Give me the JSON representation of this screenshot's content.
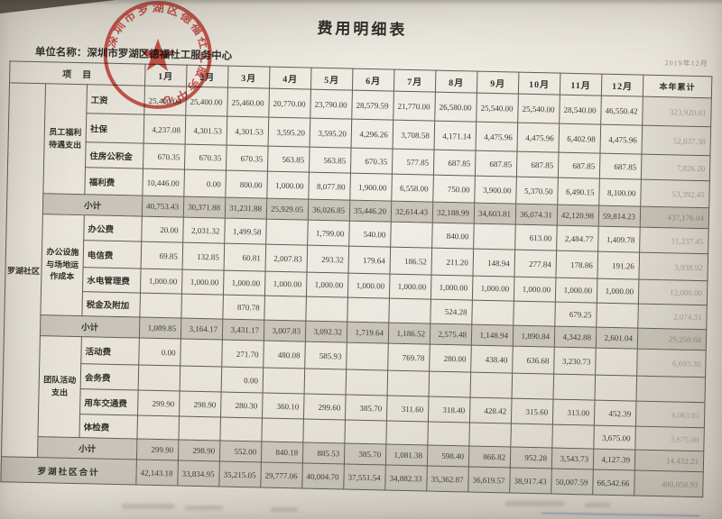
{
  "page": {
    "title": "费用明细表",
    "unit_label": "单位名称：",
    "unit_name": "深圳市罗湖区德福社工服务中心",
    "date_note": "2019年12月",
    "stamp_text": "深圳市罗湖区德福社工服务中心"
  },
  "table": {
    "region_label": "罗湖社区",
    "subtotal_label": "小计",
    "header": {
      "item": "项　目",
      "total": "本年累计",
      "months": [
        "1月",
        "2月",
        "3月",
        "4月",
        "5月",
        "6月",
        "7月",
        "8月",
        "9月",
        "10月",
        "11月",
        "12月"
      ]
    },
    "groups": [
      {
        "category": "员工福利待遇支出",
        "rows": [
          {
            "label": "工资",
            "values": [
              "25,400.00",
              "25,400.00",
              "25,460.00",
              "20,770.00",
              "23,790.00",
              "28,579.59",
              "21,770.00",
              "26,580.00",
              "25,540.00",
              "25,540.00",
              "28,540.00",
              "46,550.42"
            ],
            "total": "323,920.01"
          },
          {
            "label": "社保",
            "values": [
              "4,237.08",
              "4,301.53",
              "4,301.53",
              "3,595.20",
              "3,595.20",
              "4,296.26",
              "3,708.58",
              "4,171.14",
              "4,475.96",
              "4,475.96",
              "6,402.98",
              "4,475.96"
            ],
            "total": "52,037.38"
          },
          {
            "label": "住房公积金",
            "values": [
              "670.35",
              "670.35",
              "670.35",
              "563.85",
              "563.85",
              "670.35",
              "577.85",
              "687.85",
              "687.85",
              "687.85",
              "687.85",
              "687.85"
            ],
            "total": "7,826.20"
          },
          {
            "label": "福利费",
            "values": [
              "10,446.00",
              "0.00",
              "800.00",
              "1,000.00",
              "8,077.80",
              "1,900.00",
              "6,558.00",
              "750.00",
              "3,900.00",
              "5,370.50",
              "6,490.15",
              "8,100.00"
            ],
            "total": "53,392.45"
          }
        ],
        "subtotal": {
          "values": [
            "40,753.43",
            "30,371.88",
            "31,231.88",
            "25,929.05",
            "36,026.85",
            "35,446.20",
            "32,614.43",
            "32,188.99",
            "34,603.81",
            "36,074.31",
            "42,120.98",
            "59,814.23"
          ],
          "total": "437,176.04"
        }
      },
      {
        "category": "办公设施与场地运作成本",
        "rows": [
          {
            "label": "办公费",
            "values": [
              "20.00",
              "2,031.32",
              "1,499.58",
              "",
              "1,799.00",
              "540.00",
              "",
              "840.00",
              "",
              "613.00",
              "2,484.77",
              "1,409.78"
            ],
            "total": "11,237.45"
          },
          {
            "label": "电信费",
            "values": [
              "69.85",
              "132.85",
              "60.81",
              "2,007.83",
              "293.32",
              "179.64",
              "186.52",
              "211.20",
              "148.94",
              "277.84",
              "178.86",
              "191.26"
            ],
            "total": "3,938.92"
          },
          {
            "label": "水电管理费",
            "values": [
              "1,000.00",
              "1,000.00",
              "1,000.00",
              "1,000.00",
              "1,000.00",
              "1,000.00",
              "1,000.00",
              "1,000.00",
              "1,000.00",
              "1,000.00",
              "1,000.00",
              "1,000.00"
            ],
            "total": "12,000.00"
          },
          {
            "label": "税金及附加",
            "values": [
              "",
              "",
              "870.78",
              "",
              "",
              "",
              "",
              "524.28",
              "",
              "",
              "679.25",
              ""
            ],
            "total": "2,074.31"
          }
        ],
        "subtotal": {
          "values": [
            "1,089.85",
            "3,164.17",
            "3,431.17",
            "3,007.83",
            "3,092.32",
            "1,719.64",
            "1,186.52",
            "2,575.48",
            "1,148.94",
            "1,890.84",
            "4,342.88",
            "2,601.04"
          ],
          "total": "29,250.68"
        }
      },
      {
        "category": "团队活动支出",
        "rows": [
          {
            "label": "活动费",
            "values": [
              "0.00",
              "",
              "271.70",
              "480.08",
              "585.93",
              "",
              "769.78",
              "280.00",
              "438.40",
              "636.68",
              "3,230.73",
              ""
            ],
            "total": "6,693.30"
          },
          {
            "label": "会务费",
            "values": [
              "",
              "",
              "0.00",
              "",
              "",
              "",
              "",
              "",
              "",
              "",
              "",
              ""
            ],
            "total": ""
          },
          {
            "label": "用车交通费",
            "values": [
              "299.90",
              "298.90",
              "280.30",
              "360.10",
              "299.60",
              "385.70",
              "311.60",
              "318.40",
              "428.42",
              "315.60",
              "313.00",
              "452.39"
            ],
            "total": "4,063.91"
          },
          {
            "label": "体检费",
            "values": [
              "",
              "",
              "",
              "",
              "",
              "",
              "",
              "",
              "",
              "",
              "",
              "3,675.00"
            ],
            "total": "3,675.00"
          }
        ],
        "subtotal": {
          "values": [
            "299.90",
            "298.90",
            "552.00",
            "840.18",
            "885.53",
            "385.70",
            "1,081.38",
            "598.40",
            "866.82",
            "952.28",
            "3,543.73",
            "4,127.39"
          ],
          "total": "14,432.21"
        }
      }
    ],
    "grand_total": {
      "label": "罗湖社区合计",
      "values": [
        "42,143.18",
        "33,834.95",
        "35,215.05",
        "29,777.06",
        "40,004.70",
        "37,551.54",
        "34,882.33",
        "35,362.87",
        "36,619.57",
        "38,917.43",
        "50,007.59",
        "66,542.66"
      ],
      "total": "480,858.93"
    }
  },
  "colors": {
    "stamp_red": "#b5382e",
    "subtotal_bg": "#c8c4b9",
    "paper": "#e6e2d8"
  }
}
